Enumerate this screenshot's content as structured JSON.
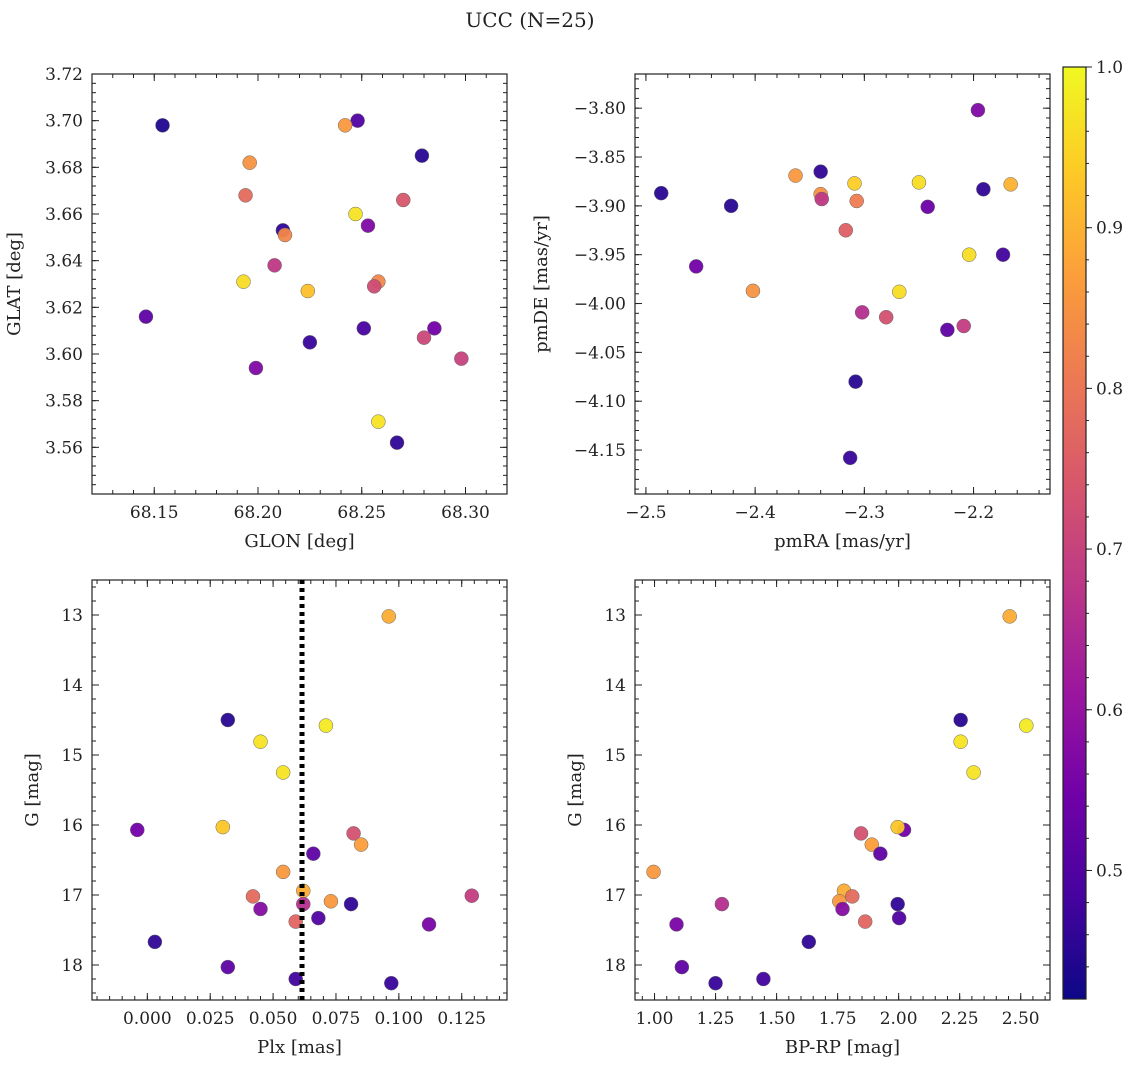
{
  "title": "UCC (N=25)",
  "colors": {
    "cmap": [
      "#0d0887",
      "#46039f",
      "#7201a8",
      "#9c179e",
      "#bd3786",
      "#d8576b",
      "#ed7953",
      "#fb9f3a",
      "#fdca26",
      "#f0f921"
    ],
    "reference_line": "#000000"
  },
  "colorbar": {
    "range": [
      0.42,
      1.0
    ],
    "ticks": [
      "0.5",
      "0.6",
      "0.7",
      "0.8",
      "0.9",
      "1.0"
    ],
    "tick_values": [
      0.5,
      0.6,
      0.7,
      0.8,
      0.9,
      1.0
    ]
  },
  "chart_data": [
    {
      "id": "sky",
      "type": "scatter",
      "xlabel": "GLON [deg]",
      "ylabel": "GLAT [deg]",
      "xlim": [
        68.12,
        68.32
      ],
      "ylim": [
        3.54,
        3.72
      ],
      "xticks": [
        68.15,
        68.2,
        68.25,
        68.3
      ],
      "xtick_labels": [
        "68.15",
        "68.20",
        "68.25",
        "68.30"
      ],
      "yticks": [
        3.56,
        3.58,
        3.6,
        3.62,
        3.64,
        3.66,
        3.68,
        3.7,
        3.72
      ],
      "ytick_labels": [
        "3.56",
        "3.58",
        "3.60",
        "3.62",
        "3.64",
        "3.66",
        "3.68",
        "3.70",
        "3.72"
      ],
      "invert_y": false,
      "points": [
        {
          "x": 68.154,
          "y": 3.698,
          "c": 0.44
        },
        {
          "x": 68.248,
          "y": 3.7,
          "c": 0.5
        },
        {
          "x": 68.242,
          "y": 3.698,
          "c": 0.86
        },
        {
          "x": 68.279,
          "y": 3.685,
          "c": 0.45
        },
        {
          "x": 68.196,
          "y": 3.682,
          "c": 0.85
        },
        {
          "x": 68.194,
          "y": 3.668,
          "c": 0.78
        },
        {
          "x": 68.27,
          "y": 3.666,
          "c": 0.74
        },
        {
          "x": 68.247,
          "y": 3.66,
          "c": 0.97
        },
        {
          "x": 68.253,
          "y": 3.655,
          "c": 0.57
        },
        {
          "x": 68.212,
          "y": 3.653,
          "c": 0.46
        },
        {
          "x": 68.213,
          "y": 3.651,
          "c": 0.83
        },
        {
          "x": 68.208,
          "y": 3.638,
          "c": 0.68
        },
        {
          "x": 68.258,
          "y": 3.631,
          "c": 0.83
        },
        {
          "x": 68.193,
          "y": 3.631,
          "c": 0.96
        },
        {
          "x": 68.256,
          "y": 3.629,
          "c": 0.72
        },
        {
          "x": 68.224,
          "y": 3.627,
          "c": 0.92
        },
        {
          "x": 68.146,
          "y": 3.616,
          "c": 0.52
        },
        {
          "x": 68.285,
          "y": 3.611,
          "c": 0.55
        },
        {
          "x": 68.251,
          "y": 3.611,
          "c": 0.49
        },
        {
          "x": 68.28,
          "y": 3.607,
          "c": 0.71
        },
        {
          "x": 68.225,
          "y": 3.605,
          "c": 0.47
        },
        {
          "x": 68.298,
          "y": 3.598,
          "c": 0.7
        },
        {
          "x": 68.199,
          "y": 3.594,
          "c": 0.57
        },
        {
          "x": 68.258,
          "y": 3.571,
          "c": 0.97
        },
        {
          "x": 68.267,
          "y": 3.562,
          "c": 0.46
        }
      ]
    },
    {
      "id": "pm",
      "type": "scatter",
      "xlabel": "pmRA [mas/yr]",
      "ylabel": "pmDE [mas/yr]",
      "xlim": [
        -2.51,
        -2.13
      ],
      "ylim": [
        -4.195,
        -3.765
      ],
      "xticks": [
        -2.5,
        -2.4,
        -2.3,
        -2.2
      ],
      "xtick_labels": [
        "−2.5",
        "−2.4",
        "−2.3",
        "−2.2"
      ],
      "yticks": [
        -4.15,
        -4.1,
        -4.05,
        -4.0,
        -3.95,
        -3.9,
        -3.85,
        -3.8
      ],
      "ytick_labels": [
        "−4.15",
        "−4.10",
        "−4.05",
        "−4.00",
        "−3.95",
        "−3.90",
        "−3.85",
        "−3.80"
      ],
      "invert_y": false,
      "points": [
        {
          "x": -2.196,
          "y": -3.802,
          "c": 0.57
        },
        {
          "x": -2.363,
          "y": -3.869,
          "c": 0.86
        },
        {
          "x": -2.34,
          "y": -3.865,
          "c": 0.46
        },
        {
          "x": -2.309,
          "y": -3.877,
          "c": 0.94
        },
        {
          "x": -2.25,
          "y": -3.876,
          "c": 0.96
        },
        {
          "x": -2.166,
          "y": -3.878,
          "c": 0.9
        },
        {
          "x": -2.191,
          "y": -3.883,
          "c": 0.46
        },
        {
          "x": -2.486,
          "y": -3.887,
          "c": 0.45
        },
        {
          "x": -2.34,
          "y": -3.888,
          "c": 0.85
        },
        {
          "x": -2.339,
          "y": -3.893,
          "c": 0.68
        },
        {
          "x": -2.307,
          "y": -3.895,
          "c": 0.81
        },
        {
          "x": -2.422,
          "y": -3.9,
          "c": 0.45
        },
        {
          "x": -2.242,
          "y": -3.901,
          "c": 0.54
        },
        {
          "x": -2.317,
          "y": -3.925,
          "c": 0.76
        },
        {
          "x": -2.204,
          "y": -3.95,
          "c": 0.96
        },
        {
          "x": -2.173,
          "y": -3.95,
          "c": 0.48
        },
        {
          "x": -2.454,
          "y": -3.962,
          "c": 0.55
        },
        {
          "x": -2.402,
          "y": -3.987,
          "c": 0.85
        },
        {
          "x": -2.268,
          "y": -3.988,
          "c": 0.96
        },
        {
          "x": -2.302,
          "y": -4.009,
          "c": 0.66
        },
        {
          "x": -2.28,
          "y": -4.014,
          "c": 0.73
        },
        {
          "x": -2.209,
          "y": -4.023,
          "c": 0.69
        },
        {
          "x": -2.224,
          "y": -4.027,
          "c": 0.52
        },
        {
          "x": -2.308,
          "y": -4.08,
          "c": 0.45
        },
        {
          "x": -2.313,
          "y": -4.158,
          "c": 0.47
        }
      ]
    },
    {
      "id": "plx",
      "type": "scatter",
      "xlabel": "Plx [mas]",
      "ylabel": "G [mag]",
      "xlim": [
        -0.022,
        0.143
      ],
      "ylim": [
        12.5,
        18.5
      ],
      "xticks": [
        0.0,
        0.025,
        0.05,
        0.075,
        0.1,
        0.125
      ],
      "xtick_labels": [
        "0.000",
        "0.025",
        "0.050",
        "0.075",
        "0.100",
        "0.125"
      ],
      "yticks": [
        13,
        14,
        15,
        16,
        17,
        18
      ],
      "ytick_labels": [
        "13",
        "14",
        "15",
        "16",
        "17",
        "18"
      ],
      "invert_y": true,
      "reference_x": 0.0615,
      "points": [
        {
          "x": 0.096,
          "y": 13.02,
          "c": 0.89
        },
        {
          "x": 0.032,
          "y": 14.5,
          "c": 0.45
        },
        {
          "x": 0.071,
          "y": 14.58,
          "c": 0.98
        },
        {
          "x": 0.045,
          "y": 14.81,
          "c": 0.97
        },
        {
          "x": 0.054,
          "y": 15.25,
          "c": 0.97
        },
        {
          "x": -0.004,
          "y": 16.07,
          "c": 0.55
        },
        {
          "x": 0.03,
          "y": 16.03,
          "c": 0.93
        },
        {
          "x": 0.082,
          "y": 16.12,
          "c": 0.73
        },
        {
          "x": 0.085,
          "y": 16.28,
          "c": 0.87
        },
        {
          "x": 0.066,
          "y": 16.41,
          "c": 0.52
        },
        {
          "x": 0.054,
          "y": 16.67,
          "c": 0.86
        },
        {
          "x": 0.062,
          "y": 16.94,
          "c": 0.89
        },
        {
          "x": 0.042,
          "y": 17.02,
          "c": 0.78
        },
        {
          "x": 0.129,
          "y": 17.01,
          "c": 0.69
        },
        {
          "x": 0.073,
          "y": 17.09,
          "c": 0.86
        },
        {
          "x": 0.081,
          "y": 17.13,
          "c": 0.46
        },
        {
          "x": 0.062,
          "y": 17.13,
          "c": 0.66
        },
        {
          "x": 0.045,
          "y": 17.2,
          "c": 0.58
        },
        {
          "x": 0.068,
          "y": 17.33,
          "c": 0.5
        },
        {
          "x": 0.059,
          "y": 17.38,
          "c": 0.77
        },
        {
          "x": 0.112,
          "y": 17.42,
          "c": 0.56
        },
        {
          "x": 0.003,
          "y": 17.67,
          "c": 0.46
        },
        {
          "x": 0.032,
          "y": 18.03,
          "c": 0.52
        },
        {
          "x": 0.059,
          "y": 18.2,
          "c": 0.48
        },
        {
          "x": 0.097,
          "y": 18.26,
          "c": 0.47
        }
      ]
    },
    {
      "id": "cmd",
      "type": "scatter",
      "xlabel": "BP-RP [mag]",
      "ylabel": "G [mag]",
      "xlim": [
        0.92,
        2.62
      ],
      "ylim": [
        12.5,
        18.5
      ],
      "xticks": [
        1.0,
        1.25,
        1.5,
        1.75,
        2.0,
        2.25,
        2.5
      ],
      "xtick_labels": [
        "1.00",
        "1.25",
        "1.50",
        "1.75",
        "2.00",
        "2.25",
        "2.50"
      ],
      "yticks": [
        13,
        14,
        15,
        16,
        17,
        18
      ],
      "ytick_labels": [
        "13",
        "14",
        "15",
        "16",
        "17",
        "18"
      ],
      "invert_y": true,
      "points": [
        {
          "x": 2.455,
          "y": 13.02,
          "c": 0.89
        },
        {
          "x": 2.254,
          "y": 14.5,
          "c": 0.45
        },
        {
          "x": 2.523,
          "y": 14.58,
          "c": 0.98
        },
        {
          "x": 2.254,
          "y": 14.81,
          "c": 0.97
        },
        {
          "x": 2.307,
          "y": 15.25,
          "c": 0.97
        },
        {
          "x": 2.022,
          "y": 16.07,
          "c": 0.55
        },
        {
          "x": 1.996,
          "y": 16.03,
          "c": 0.93
        },
        {
          "x": 1.846,
          "y": 16.12,
          "c": 0.73
        },
        {
          "x": 1.89,
          "y": 16.28,
          "c": 0.87
        },
        {
          "x": 1.925,
          "y": 16.41,
          "c": 0.52
        },
        {
          "x": 0.996,
          "y": 16.67,
          "c": 0.86
        },
        {
          "x": 1.776,
          "y": 16.94,
          "c": 0.89
        },
        {
          "x": 1.81,
          "y": 17.02,
          "c": 0.78
        },
        {
          "x": 1.757,
          "y": 17.09,
          "c": 0.86
        },
        {
          "x": 1.996,
          "y": 17.13,
          "c": 0.46
        },
        {
          "x": 1.276,
          "y": 17.13,
          "c": 0.66
        },
        {
          "x": 1.77,
          "y": 17.2,
          "c": 0.58
        },
        {
          "x": 2.002,
          "y": 17.33,
          "c": 0.5
        },
        {
          "x": 1.863,
          "y": 17.38,
          "c": 0.77
        },
        {
          "x": 1.09,
          "y": 17.42,
          "c": 0.56
        },
        {
          "x": 1.632,
          "y": 17.67,
          "c": 0.46
        },
        {
          "x": 1.112,
          "y": 18.03,
          "c": 0.52
        },
        {
          "x": 1.446,
          "y": 18.2,
          "c": 0.48
        },
        {
          "x": 1.25,
          "y": 18.26,
          "c": 0.47
        }
      ]
    }
  ]
}
